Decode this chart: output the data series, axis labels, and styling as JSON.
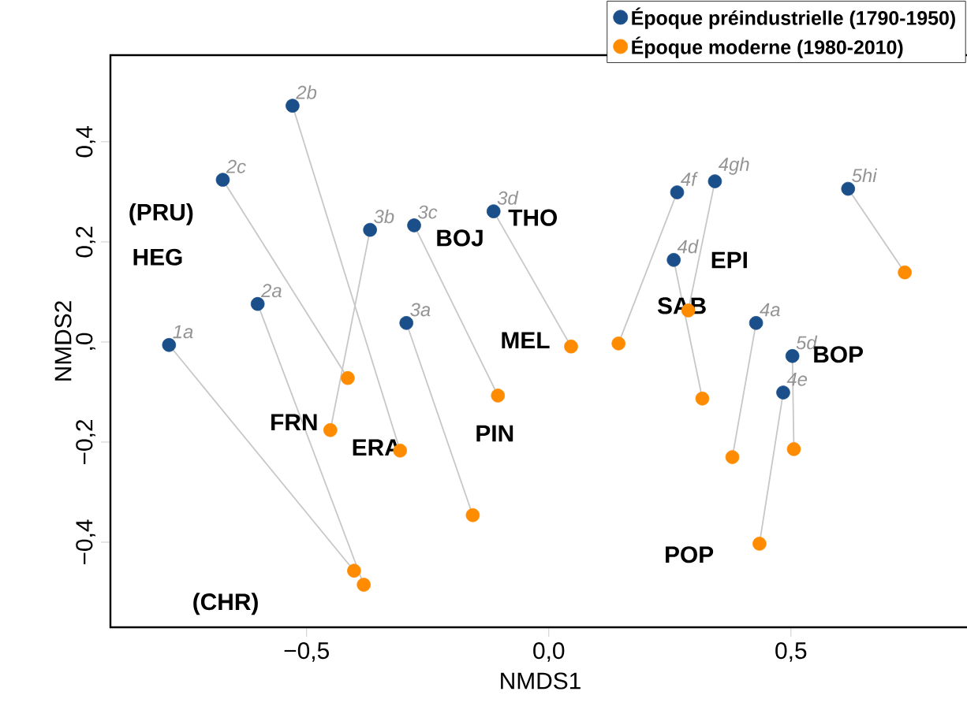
{
  "chart_data": {
    "type": "scatter",
    "xlabel": "NMDS1",
    "ylabel": "NMDS2",
    "xlim": [
      -0.905,
      0.87
    ],
    "ylim": [
      -0.57,
      0.573
    ],
    "xticks": [
      {
        "value": -0.5,
        "label": "−0,5"
      },
      {
        "value": 0,
        "label": "0,0"
      },
      {
        "value": 0.5,
        "label": "0,5"
      }
    ],
    "yticks": [
      {
        "value": -0.4,
        "label": "−0,4"
      },
      {
        "value": -0.2,
        "label": "−0,2"
      },
      {
        "value": 0,
        "label": ",0"
      },
      {
        "value": 0.2,
        "label": "0,2"
      },
      {
        "value": 0.4,
        "label": "0,4"
      }
    ],
    "marker": "circle",
    "legend": "top right",
    "grid": false,
    "series": [
      {
        "name": "Époque préindustrielle (1790-1950)",
        "color": "#1a4f8a",
        "x": [
          -0.784,
          -0.601,
          -0.529,
          -0.673,
          -0.369,
          -0.278,
          -0.294,
          -0.114,
          0.265,
          0.343,
          0.258,
          0.428,
          0.503,
          0.484,
          0.618
        ],
        "values": [
          -0.006,
          0.076,
          0.472,
          0.324,
          0.224,
          0.233,
          0.038,
          0.261,
          0.299,
          0.321,
          0.164,
          0.038,
          -0.028,
          -0.101,
          0.306
        ]
      },
      {
        "name": "Époque moderne (1980-2010)",
        "color": "#ff8c00",
        "x": [
          -0.402,
          -0.382,
          -0.307,
          -0.415,
          -0.451,
          -0.105,
          -0.157,
          0.046,
          0.144,
          0.288,
          0.317,
          0.379,
          0.506,
          0.435,
          0.735
        ],
        "values": [
          -0.457,
          -0.485,
          -0.217,
          -0.072,
          -0.176,
          -0.107,
          -0.346,
          -0.009,
          -0.003,
          0.063,
          -0.113,
          -0.23,
          -0.214,
          -0.403,
          0.139
        ]
      }
    ],
    "annotations": [
      {
        "text": "1a",
        "x": -0.784,
        "y": -0.006
      },
      {
        "text": "2a",
        "x": -0.601,
        "y": 0.076
      },
      {
        "text": "2b",
        "x": -0.529,
        "y": 0.472
      },
      {
        "text": "2c",
        "x": -0.673,
        "y": 0.324
      },
      {
        "text": "3b",
        "x": -0.369,
        "y": 0.224
      },
      {
        "text": "3c",
        "x": -0.278,
        "y": 0.233
      },
      {
        "text": "3a",
        "x": -0.294,
        "y": 0.038
      },
      {
        "text": "3d",
        "x": -0.114,
        "y": 0.261
      },
      {
        "text": "4f",
        "x": 0.265,
        "y": 0.299
      },
      {
        "text": "4gh",
        "x": 0.343,
        "y": 0.321
      },
      {
        "text": "4d",
        "x": 0.258,
        "y": 0.164
      },
      {
        "text": "4a",
        "x": 0.428,
        "y": 0.038
      },
      {
        "text": "5d",
        "x": 0.503,
        "y": -0.028
      },
      {
        "text": "4e",
        "x": 0.484,
        "y": -0.101
      },
      {
        "text": "5hi",
        "x": 0.618,
        "y": 0.306
      },
      "(PRU)",
      "HEG",
      "(CHR)",
      {
        "text": "FRN",
        "x": -0.451,
        "y": -0.176
      },
      {
        "text": "ERA",
        "x": -0.307,
        "y": -0.217
      },
      {
        "text": "PIN",
        "x": -0.105,
        "y": -0.107
      },
      {
        "text": "BOJ",
        "x": -0.278,
        "y": 0.233
      },
      {
        "text": "THO",
        "x": -0.114,
        "y": 0.261
      },
      {
        "text": "MEL",
        "x": 0.046,
        "y": -0.009
      },
      "EPI",
      {
        "text": "SAB",
        "x": 0.288,
        "y": 0.063
      },
      {
        "text": "BOP",
        "x": 0.503,
        "y": -0.028
      },
      "POP"
    ]
  }
}
